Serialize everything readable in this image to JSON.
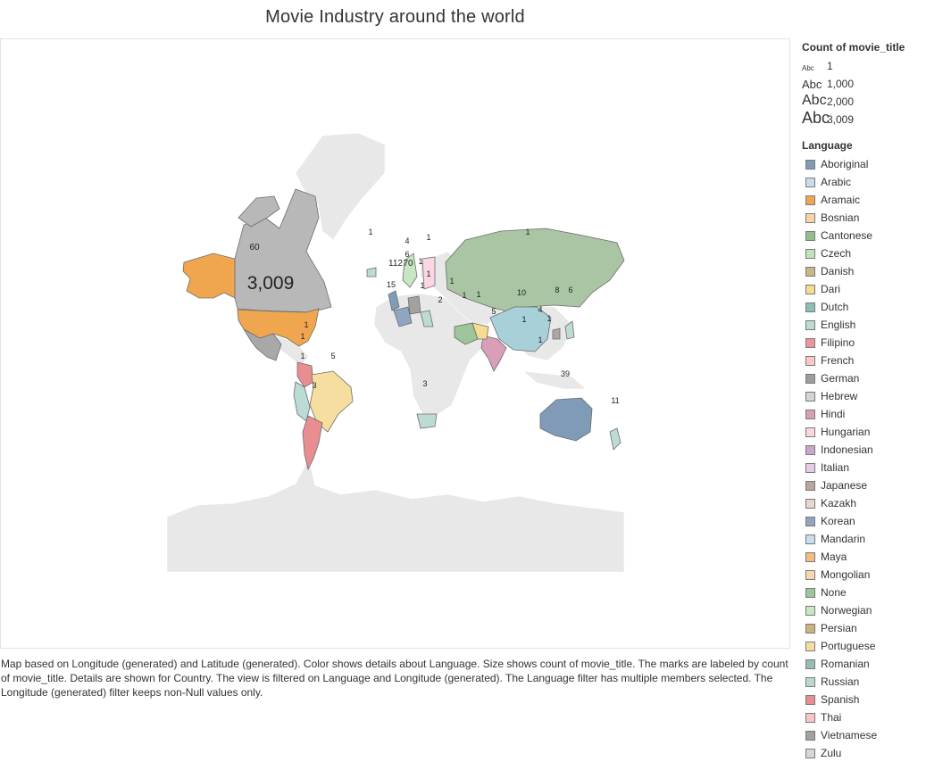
{
  "title": "Movie Industry around the world",
  "caption": "Map based on Longitude (generated) and Latitude (generated).  Color shows details about Language.  Size shows count of movie_title.  The marks are labeled by count of movie_title.  Details are shown for Country. The view is filtered on Language and Longitude (generated). The Language filter has multiple members selected. The Longitude (generated) filter keeps non-Null values only.",
  "legend": {
    "size_title": "Count of movie_title",
    "size_glyph": "Abc",
    "sizes": [
      "1",
      "1,000",
      "2,000",
      "3,009"
    ],
    "language_title": "Language",
    "languages": [
      {
        "name": "Aboriginal",
        "color": "#7f9bb8"
      },
      {
        "name": "Arabic",
        "color": "#c6ddf0"
      },
      {
        "name": "Aramaic",
        "color": "#f0a64f"
      },
      {
        "name": "Bosnian",
        "color": "#fbd3a6"
      },
      {
        "name": "Cantonese",
        "color": "#94bf8a"
      },
      {
        "name": "Czech",
        "color": "#c2e3b8"
      },
      {
        "name": "Danish",
        "color": "#cdb686"
      },
      {
        "name": "Dari",
        "color": "#f5dc91"
      },
      {
        "name": "Dutch",
        "color": "#8ebeb8"
      },
      {
        "name": "English",
        "color": "#bcdbd5"
      },
      {
        "name": "Filipino",
        "color": "#ee9599"
      },
      {
        "name": "French",
        "color": "#fac6c6"
      },
      {
        "name": "German",
        "color": "#a09c9d"
      },
      {
        "name": "Hebrew",
        "color": "#d7d3d4"
      },
      {
        "name": "Hindi",
        "color": "#d99fb8"
      },
      {
        "name": "Hungarian",
        "color": "#fad6e3"
      },
      {
        "name": "Indonesian",
        "color": "#c6a8c8"
      },
      {
        "name": "Italian",
        "color": "#e6cde6"
      },
      {
        "name": "Japanese",
        "color": "#b8a59b"
      },
      {
        "name": "Kazakh",
        "color": "#e5d6cf"
      },
      {
        "name": "Korean",
        "color": "#8fa5c2"
      },
      {
        "name": "Mandarin",
        "color": "#c8dcef"
      },
      {
        "name": "Maya",
        "color": "#f2be7d"
      },
      {
        "name": "Mongolian",
        "color": "#f9d7b3"
      },
      {
        "name": "None",
        "color": "#9dc49a"
      },
      {
        "name": "Norwegian",
        "color": "#c8e6c2"
      },
      {
        "name": "Persian",
        "color": "#cdb27a"
      },
      {
        "name": "Portuguese",
        "color": "#f5deA0"
      },
      {
        "name": "Romanian",
        "color": "#95bdb6"
      },
      {
        "name": "Russian",
        "color": "#b8d8d2"
      },
      {
        "name": "Spanish",
        "color": "#e88d90"
      },
      {
        "name": "Thai",
        "color": "#f9c6c4"
      },
      {
        "name": "Vietnamese",
        "color": "#a3a0a0"
      },
      {
        "name": "Zulu",
        "color": "#d9d6d6"
      }
    ]
  },
  "map": {
    "counts": [
      {
        "country": "United States",
        "label": "3,009",
        "count": 3009
      },
      {
        "country": "Canada",
        "label": "60",
        "count": 60
      },
      {
        "country": "Australia",
        "label": "39",
        "count": 39
      },
      {
        "country": "New Zealand",
        "label": "11",
        "count": 11
      },
      {
        "country": "China",
        "label": "10",
        "count": 10
      },
      {
        "country": "India",
        "label": "5",
        "count": 5
      },
      {
        "country": "Brazil",
        "label": "5",
        "count": 5
      },
      {
        "country": "Argentina",
        "label": "3",
        "count": 3
      },
      {
        "country": "South Africa",
        "label": "3",
        "count": 3
      },
      {
        "country": "Russia",
        "label": "1",
        "count": 1
      },
      {
        "country": "United Kingdom",
        "label": "112",
        "count": 112
      },
      {
        "country": "France",
        "label": "15",
        "count": 15
      },
      {
        "country": "Germany",
        "label": "70",
        "count": 70
      },
      {
        "country": "Sweden",
        "label": "4",
        "count": 4
      },
      {
        "country": "Finland",
        "label": "1",
        "count": 1
      },
      {
        "country": "Denmark",
        "label": "6",
        "count": 6
      },
      {
        "country": "Netherlands",
        "label": "1",
        "count": 1
      },
      {
        "country": "Czech Republic",
        "label": "1",
        "count": 1
      },
      {
        "country": "Italy",
        "label": "1",
        "count": 1
      },
      {
        "country": "Iceland",
        "label": "1",
        "count": 1
      },
      {
        "country": "Egypt",
        "label": "2",
        "count": 2
      },
      {
        "country": "Iran",
        "label": "1",
        "count": 1
      },
      {
        "country": "Afghanistan",
        "label": "1",
        "count": 1
      },
      {
        "country": "Georgia",
        "label": "1",
        "count": 1
      },
      {
        "country": "Japan",
        "label": "6",
        "count": 6
      },
      {
        "country": "South Korea",
        "label": "8",
        "count": 8
      },
      {
        "country": "Hong Kong",
        "label": "4",
        "count": 4
      },
      {
        "country": "Taiwan",
        "label": "1",
        "count": 1
      },
      {
        "country": "Thailand",
        "label": "1",
        "count": 1
      },
      {
        "country": "Indonesia",
        "label": "1",
        "count": 1
      },
      {
        "country": "Mexico",
        "label": "1",
        "count": 1
      },
      {
        "country": "Colombia",
        "label": "1",
        "count": 1
      },
      {
        "country": "Peru",
        "label": "1",
        "count": 1
      }
    ]
  }
}
